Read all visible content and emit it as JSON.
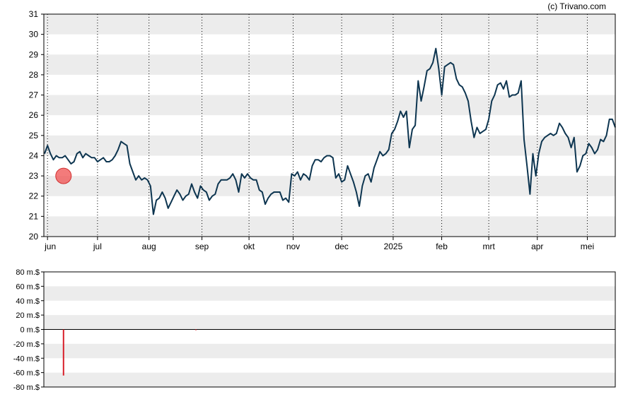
{
  "credit": "(c) Trivano.com",
  "colors": {
    "price_line": "#0d3550",
    "band": "#ececec",
    "marker": "#f05a5a",
    "volume_bar": "#d81f2a",
    "axis": "#000000"
  },
  "chart_data": [
    {
      "type": "line",
      "title": "",
      "xlabel": "",
      "ylabel": "",
      "ylim": [
        20,
        31
      ],
      "y_ticks": [
        "20",
        "21",
        "22",
        "23",
        "24",
        "25",
        "26",
        "27",
        "28",
        "29",
        "30",
        "31"
      ],
      "x_ticks": [
        {
          "label": "jun",
          "t": 0.0
        },
        {
          "label": "jul",
          "t": 17.0
        },
        {
          "label": "aug",
          "t": 34.5
        },
        {
          "label": "sep",
          "t": 52.5
        },
        {
          "label": "okt",
          "t": 68.5
        },
        {
          "label": "nov",
          "t": 83.5
        },
        {
          "label": "dec",
          "t": 100.0
        },
        {
          "label": "2025",
          "t": 117.5
        },
        {
          "label": "feb",
          "t": 134.0
        },
        {
          "label": "mrt",
          "t": 150.0
        },
        {
          "label": "apr",
          "t": 166.5
        },
        {
          "label": "mei",
          "t": 183.5
        }
      ],
      "grid": "dotted vertical lines at month starts, alternating horizontal bands",
      "series": [
        {
          "values": [
            [
              -1,
              24.1
            ],
            [
              0,
              24.5
            ],
            [
              1,
              24.1
            ],
            [
              2,
              23.8
            ],
            [
              3,
              24.0
            ],
            [
              4,
              23.9
            ],
            [
              5,
              23.9
            ],
            [
              6,
              24.0
            ],
            [
              7,
              23.8
            ],
            [
              8,
              23.6
            ],
            [
              9,
              23.7
            ],
            [
              10,
              24.1
            ],
            [
              11,
              24.2
            ],
            [
              12,
              23.9
            ],
            [
              13,
              24.1
            ],
            [
              14,
              24.0
            ],
            [
              15,
              23.9
            ],
            [
              16,
              23.9
            ],
            [
              17,
              23.7
            ],
            [
              18,
              23.8
            ],
            [
              19,
              23.9
            ],
            [
              20,
              23.7
            ],
            [
              21,
              23.7
            ],
            [
              22,
              23.8
            ],
            [
              23,
              24.0
            ],
            [
              24,
              24.3
            ],
            [
              25,
              24.7
            ],
            [
              26,
              24.6
            ],
            [
              27,
              24.5
            ],
            [
              28,
              23.6
            ],
            [
              29,
              23.2
            ],
            [
              30,
              22.8
            ],
            [
              31,
              23.0
            ],
            [
              32,
              22.8
            ],
            [
              33,
              22.9
            ],
            [
              34,
              22.8
            ],
            [
              35,
              22.5
            ],
            [
              36,
              21.1
            ],
            [
              37,
              21.8
            ],
            [
              38,
              21.9
            ],
            [
              39,
              22.2
            ],
            [
              40,
              21.9
            ],
            [
              41,
              21.4
            ],
            [
              42,
              21.7
            ],
            [
              43,
              22.0
            ],
            [
              44,
              22.3
            ],
            [
              45,
              22.1
            ],
            [
              46,
              21.8
            ],
            [
              47,
              22.0
            ],
            [
              48,
              22.1
            ],
            [
              49,
              22.6
            ],
            [
              50,
              22.2
            ],
            [
              51,
              21.9
            ],
            [
              52,
              22.5
            ],
            [
              53,
              22.3
            ],
            [
              54,
              22.2
            ],
            [
              55,
              21.8
            ],
            [
              56,
              22.0
            ],
            [
              57,
              22.1
            ],
            [
              58,
              22.6
            ],
            [
              59,
              22.8
            ],
            [
              60,
              22.8
            ],
            [
              61,
              22.8
            ],
            [
              62,
              22.9
            ],
            [
              63,
              23.1
            ],
            [
              64,
              22.8
            ],
            [
              65,
              22.2
            ],
            [
              66,
              23.1
            ],
            [
              67,
              22.9
            ],
            [
              68,
              23.1
            ],
            [
              69,
              22.9
            ],
            [
              70,
              22.8
            ],
            [
              71,
              22.8
            ],
            [
              72,
              22.3
            ],
            [
              73,
              22.2
            ],
            [
              74,
              21.6
            ],
            [
              75,
              21.9
            ],
            [
              76,
              22.1
            ],
            [
              77,
              22.2
            ],
            [
              78,
              22.2
            ],
            [
              79,
              22.2
            ],
            [
              80,
              21.8
            ],
            [
              81,
              21.9
            ],
            [
              82,
              21.7
            ],
            [
              83,
              23.1
            ],
            [
              84,
              23.0
            ],
            [
              85,
              23.2
            ],
            [
              86,
              22.8
            ],
            [
              87,
              23.1
            ],
            [
              88,
              23.0
            ],
            [
              89,
              22.8
            ],
            [
              90,
              23.5
            ],
            [
              91,
              23.8
            ],
            [
              92,
              23.8
            ],
            [
              93,
              23.7
            ],
            [
              94,
              23.9
            ],
            [
              95,
              24.0
            ],
            [
              96,
              24.0
            ],
            [
              97,
              23.9
            ],
            [
              98,
              22.9
            ],
            [
              99,
              23.1
            ],
            [
              100,
              22.7
            ],
            [
              101,
              22.8
            ],
            [
              102,
              23.5
            ],
            [
              103,
              23.1
            ],
            [
              104,
              22.7
            ],
            [
              105,
              22.2
            ],
            [
              106,
              21.5
            ],
            [
              107,
              22.5
            ],
            [
              108,
              23.0
            ],
            [
              109,
              23.1
            ],
            [
              110,
              22.7
            ],
            [
              111,
              23.4
            ],
            [
              112,
              23.8
            ],
            [
              113,
              24.2
            ],
            [
              114,
              24.0
            ],
            [
              115,
              24.1
            ],
            [
              116,
              24.3
            ],
            [
              117,
              25.1
            ],
            [
              118,
              25.3
            ],
            [
              119,
              25.7
            ],
            [
              120,
              26.2
            ],
            [
              121,
              25.9
            ],
            [
              122,
              26.2
            ],
            [
              123,
              24.4
            ],
            [
              124,
              25.3
            ],
            [
              125,
              25.5
            ],
            [
              126,
              27.7
            ],
            [
              127,
              26.7
            ],
            [
              128,
              27.4
            ],
            [
              129,
              28.2
            ],
            [
              130,
              28.3
            ],
            [
              131,
              28.6
            ],
            [
              132,
              29.3
            ],
            [
              133,
              28.3
            ],
            [
              134,
              27.0
            ],
            [
              135,
              28.4
            ],
            [
              136,
              28.5
            ],
            [
              137,
              28.6
            ],
            [
              138,
              28.5
            ],
            [
              139,
              27.8
            ],
            [
              140,
              27.5
            ],
            [
              141,
              27.4
            ],
            [
              142,
              27.1
            ],
            [
              143,
              26.7
            ],
            [
              144,
              25.7
            ],
            [
              145,
              24.9
            ],
            [
              146,
              25.4
            ],
            [
              147,
              25.1
            ],
            [
              148,
              25.2
            ],
            [
              149,
              25.3
            ],
            [
              150,
              25.8
            ],
            [
              151,
              26.7
            ],
            [
              152,
              27.0
            ],
            [
              153,
              27.5
            ],
            [
              154,
              27.6
            ],
            [
              155,
              27.3
            ],
            [
              156,
              27.7
            ],
            [
              157,
              26.9
            ],
            [
              158,
              27.0
            ],
            [
              159,
              27.0
            ],
            [
              160,
              27.1
            ],
            [
              161,
              27.7
            ],
            [
              162,
              24.8
            ],
            [
              163,
              23.5
            ],
            [
              164,
              22.1
            ],
            [
              165,
              24.1
            ],
            [
              166,
              23.0
            ],
            [
              167,
              24.1
            ],
            [
              168,
              24.7
            ],
            [
              169,
              24.9
            ],
            [
              170,
              25.0
            ],
            [
              171,
              25.1
            ],
            [
              172,
              25.0
            ],
            [
              173,
              25.1
            ],
            [
              174,
              25.6
            ],
            [
              175,
              25.4
            ],
            [
              176,
              25.1
            ],
            [
              177,
              24.9
            ],
            [
              178,
              24.4
            ],
            [
              179,
              24.9
            ],
            [
              180,
              23.2
            ],
            [
              181,
              23.5
            ],
            [
              182,
              24.0
            ],
            [
              183,
              24.1
            ],
            [
              184,
              24.6
            ],
            [
              185,
              24.4
            ],
            [
              186,
              24.1
            ],
            [
              187,
              24.3
            ],
            [
              188,
              24.8
            ],
            [
              189,
              24.7
            ],
            [
              190,
              25.0
            ],
            [
              191,
              25.8
            ],
            [
              192,
              25.8
            ],
            [
              193,
              25.4
            ]
          ]
        }
      ],
      "markers": [
        {
          "t": 4.0,
          "value": 23.0
        }
      ]
    },
    {
      "type": "bar",
      "title": "",
      "xlabel": "",
      "ylabel": "",
      "ylim": [
        -80,
        80
      ],
      "y_ticks": [
        "80 m.$",
        "60 m.$",
        "40 m.$",
        "20 m.$",
        "0 m.$",
        "-20 m.$",
        "-40 m.$",
        "-60 m.$",
        "-80 m.$"
      ],
      "grid": "alternating horizontal bands",
      "series": [
        {
          "values": [
            {
              "t": 4.0,
              "value": -64
            },
            {
              "t": 49.0,
              "value": -1
            }
          ]
        }
      ]
    }
  ]
}
